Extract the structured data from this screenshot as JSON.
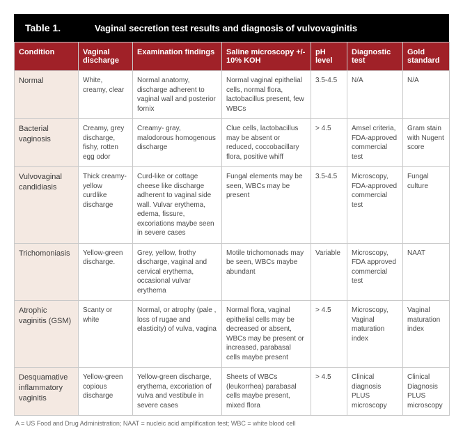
{
  "title_label": "Table 1.",
  "title_text": "Vaginal secretion test results and diagnosis of vulvovaginitis",
  "colors": {
    "header_bg": "#a02128",
    "title_bg": "#000000",
    "condition_bg": "#f4e9e2",
    "border": "#c9c9c9",
    "text": "#4a4a4a"
  },
  "columns": [
    "Condition",
    "Vaginal discharge",
    "Examination findings",
    "Saline microscopy +/- 10% KOH",
    "pH level",
    "Diagnostic test",
    "Gold standard"
  ],
  "rows": [
    {
      "condition": "Normal",
      "discharge": "White, creamy, clear",
      "exam": "Normal anatomy, discharge adherent to vaginal wall and posterior fornix",
      "microscopy": "Normal vaginal epithelial cells, normal flora, lactobacillus present, few WBCs",
      "ph": "3.5-4.5",
      "diagnostic": "N/A",
      "gold": "N/A"
    },
    {
      "condition": "Bacterial vaginosis",
      "discharge": "Creamy, grey discharge, fishy, rotten egg odor",
      "exam": "Creamy- gray, malodorous homogenous discharge",
      "microscopy": "Clue cells, lactobacillus may be absent or reduced, coccobacillary flora, positive whiff",
      "ph": "> 4.5",
      "diagnostic": "Amsel criteria, FDA-approved commercial test",
      "gold": "Gram stain with Nugent score"
    },
    {
      "condition": "Vulvovaginal candidiasis",
      "discharge": "Thick creamy-yellow curdlike discharge",
      "exam": "Curd-like or cottage cheese like discharge adherent to vaginal side wall. Vulvar erythema, edema, fissure, excoriations maybe seen in severe cases",
      "microscopy": "Fungal elements may be seen, WBCs may be present",
      "ph": "3.5-4.5",
      "diagnostic": "Microscopy, FDA-approved commercial test",
      "gold": "Fungal culture"
    },
    {
      "condition": "Trichomoniasis",
      "discharge": "Yellow-green discharge.",
      "exam": "Grey, yellow, frothy discharge, vaginal and cervical erythema, occasional vulvar erythema",
      "microscopy": "Motile trichomonads may be seen, WBCs maybe abundant",
      "ph": "Variable",
      "diagnostic": "Microscopy, FDA approved commercial test",
      "gold": "NAAT"
    },
    {
      "condition": "Atrophic vaginitis (GSM)",
      "discharge": "Scanty or white",
      "exam": "Normal, or atrophy (pale , loss of rugae and elasticity) of vulva, vagina",
      "microscopy": "Normal flora, vaginal epithelial cells may be decreased or absent, WBCs may be present or increased, parabasal cells maybe present",
      "ph": "> 4.5",
      "diagnostic": "Microscopy, Vaginal maturation index",
      "gold": "Vaginal maturation index"
    },
    {
      "condition": "Desquamative inflammatory vaginitis",
      "discharge": "Yellow-green copious discharge",
      "exam": "Yellow-green discharge, erythema, excoriation of vulva and vestibule in severe cases",
      "microscopy": "Sheets of WBCs (leukorrhea) parabasal cells maybe present, mixed flora",
      "ph": "> 4.5",
      "diagnostic": "Clinical diagnosis PLUS microscopy",
      "gold": "Clinical Diagnosis PLUS microscopy"
    }
  ],
  "footnote": "A = US Food and Drug Administration; NAAT = nucleic acid amplification test; WBC = white blood cell"
}
